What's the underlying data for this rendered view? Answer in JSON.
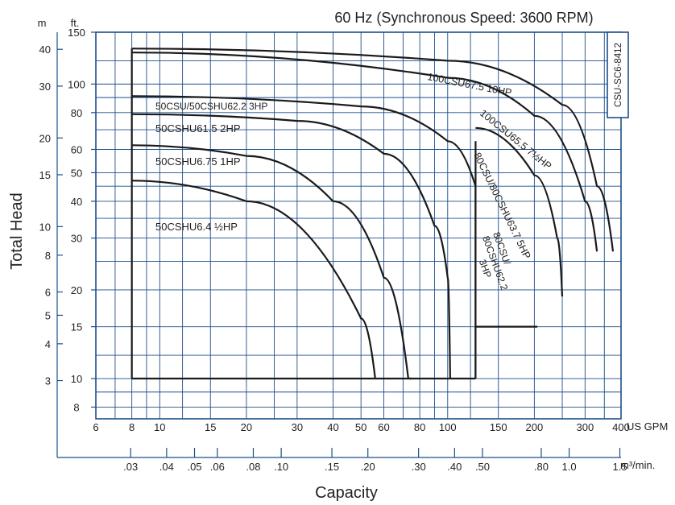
{
  "chart_data": {
    "type": "line",
    "title": "60 Hz (Synchronous Speed: 3600 RPM)",
    "ylabel": "Total Head",
    "xlabel": "Capacity",
    "code": "CSU-SC6-8412",
    "units": {
      "head_ft": "ft.",
      "head_m": "m",
      "cap_gpm": "US GPM",
      "cap_m3": "m³/min."
    },
    "x_scale": "log",
    "y_scale": "log",
    "xlim_gpm": [
      6,
      400
    ],
    "ylim_ft": [
      7.3,
      150
    ],
    "x_ticks_gpm": [
      "6",
      "8",
      "10",
      "15",
      "20",
      "30",
      "40",
      "50",
      "60",
      "80",
      "100",
      "150",
      "200",
      "300",
      "400"
    ],
    "x_ticks_m3": [
      ".03",
      ".04",
      ".05",
      ".06",
      ".08",
      ".10",
      ".15",
      ".20",
      ".30",
      ".40",
      ".50",
      ".80",
      "1.0",
      "1.5"
    ],
    "y_ticks_ft": [
      "8",
      "10",
      "15",
      "20",
      "30",
      "40",
      "50",
      "60",
      "80",
      "100",
      "150"
    ],
    "y_ticks_m": [
      "3",
      "4",
      "5",
      "6",
      "8",
      "10",
      "15",
      "20",
      "30",
      "40"
    ],
    "grid": true,
    "series": [
      {
        "name": "50CSHU6.4  ½HP",
        "x": [
          8,
          20,
          50,
          56,
          56
        ],
        "y": [
          47,
          40,
          16,
          10,
          10
        ]
      },
      {
        "name": "50CSHU6.75 1HP",
        "x": [
          8,
          20,
          40,
          60,
          73,
          75
        ],
        "y": [
          62,
          57,
          40,
          22,
          10,
          10
        ]
      },
      {
        "name": "50CSHU61.5  2HP",
        "x": [
          8,
          30,
          60,
          90,
          100,
          102
        ],
        "y": [
          79,
          75,
          58,
          33,
          22,
          10
        ]
      },
      {
        "name": "50CSU/50CSHU62.2  3HP",
        "x": [
          8,
          50,
          100,
          125,
          125
        ],
        "y": [
          91,
          84,
          64,
          45,
          10
        ]
      },
      {
        "name": "80CSU/80CSHU62.2  3HP",
        "x": [
          125,
          185,
          200,
          205
        ],
        "y": [
          15,
          15,
          15,
          15
        ]
      },
      {
        "name": "80CSU/80CSHU63.7  5HP",
        "x": [
          125,
          200,
          240,
          250,
          250
        ],
        "y": [
          71,
          49,
          30,
          19,
          19
        ]
      },
      {
        "name": "100CSU65.5  7½HP",
        "x": [
          8,
          100,
          200,
          300,
          330
        ],
        "y": [
          128,
          105,
          78,
          40,
          27
        ]
      },
      {
        "name": "100CSU67.5 10HP",
        "x": [
          8,
          100,
          250,
          330,
          375
        ],
        "y": [
          132,
          120,
          85,
          45,
          27
        ]
      }
    ],
    "labels": {
      "s1": "50CSHU6.4  ½HP",
      "s2": "50CSHU6.75 1HP",
      "s3": "50CSHU61.5  2HP",
      "s4": "50CSU/50CSHU62.2  3HP",
      "s5a": "80CSU/",
      "s5b": "80CSHU62.2",
      "s5c": "3HP",
      "s6": "80CSU/80CSHU63.7  5HP",
      "s7": "100CSU65.5  7½HP",
      "s8": "100CSU67.5 10HP"
    }
  }
}
